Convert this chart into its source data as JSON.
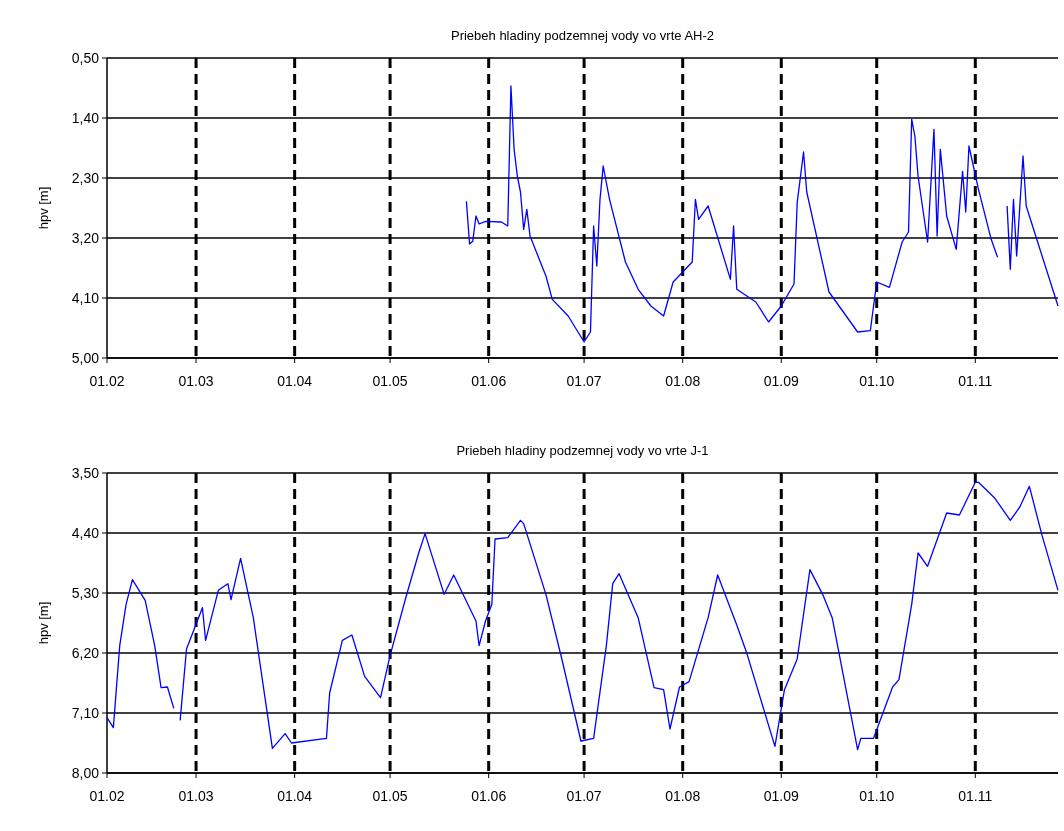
{
  "chart_data": [
    {
      "type": "line",
      "title": "Priebeh hladiny podzemnej vody vo vrte AH-2",
      "ylabel": "hpv [m]",
      "grid": true,
      "x": [
        "--05-25",
        "--05-26",
        "--05-27",
        "--05-28",
        "--05-29",
        "--05-31",
        "--06-05",
        "--06-07",
        "--06-08",
        "--06-09",
        "--06-10",
        "--06-11",
        "--06-12",
        "--06-13",
        "--06-14",
        "--06-19",
        "--06-21",
        "--06-26",
        "--07-01",
        "--07-03",
        "--07-04",
        "--07-05",
        "--07-06",
        "--07-07",
        "--07-09",
        "--07-14",
        "--07-18",
        "--07-22",
        "--07-26",
        "--07-29",
        "--08-01",
        "--08-04",
        "--08-05",
        "--08-06",
        "--08-09",
        "--08-16",
        "--08-17",
        "--08-18",
        "--08-24",
        "--08-28",
        "--09-01",
        "--09-05",
        "--09-06",
        "--09-08",
        "--09-09",
        "--09-16",
        "--09-25",
        "--09-29",
        "--10-01",
        "--10-05",
        "--10-09",
        "--10-11",
        "--10-12",
        "--10-13",
        "--10-14",
        "--10-17",
        "--10-19",
        "--10-20",
        "--10-21",
        "--10-23",
        "--10-26",
        "--10-28",
        "--10-29",
        "--10-30",
        "--11-02",
        "--11-06",
        "--11-08",
        "--11-10",
        "--11-11",
        "--11-12",
        "--11-13",
        "--11-14",
        "--11-16",
        "--11-17",
        "--11-22",
        "--11-27"
      ],
      "series": [
        {
          "color": "#0000ff",
          "values": [
            2.65,
            3.29,
            3.25,
            2.87,
            2.99,
            2.95,
            2.96,
            3.02,
            0.92,
            1.87,
            2.27,
            2.51,
            3.07,
            2.77,
            3.17,
            3.77,
            4.12,
            4.37,
            4.76,
            4.61,
            3.02,
            3.62,
            2.62,
            2.12,
            2.62,
            3.56,
            3.97,
            4.22,
            4.37,
            3.86,
            3.71,
            3.56,
            2.62,
            2.92,
            2.72,
            3.82,
            3.02,
            3.97,
            4.16,
            4.46,
            4.22,
            3.89,
            2.67,
            1.91,
            2.51,
            4.01,
            4.61,
            4.59,
            3.86,
            3.94,
            3.26,
            3.11,
            1.42,
            1.67,
            2.27,
            3.26,
            1.57,
            3.17,
            1.87,
            2.87,
            3.37,
            2.2,
            2.81,
            1.82,
            2.47,
            3.22,
            3.49,
            null,
            2.72,
            3.67,
            2.62,
            3.47,
            1.97,
            2.72,
            3.47,
            4.22
          ]
        }
      ],
      "xlim": [
        "--02-01",
        "--11-27"
      ],
      "xticks": [
        {
          "value": "--02-01",
          "label": "01.02"
        },
        {
          "value": "--03-01",
          "label": "01.03"
        },
        {
          "value": "--04-01",
          "label": "01.04"
        },
        {
          "value": "--05-01",
          "label": "01.05"
        },
        {
          "value": "--06-01",
          "label": "01.06"
        },
        {
          "value": "--07-01",
          "label": "01.07"
        },
        {
          "value": "--08-01",
          "label": "01.08"
        },
        {
          "value": "--09-01",
          "label": "01.09"
        },
        {
          "value": "--10-01",
          "label": "01.10"
        },
        {
          "value": "--11-01",
          "label": "01.11"
        }
      ],
      "ylim": [
        5.0,
        0.5
      ],
      "yticks": [
        {
          "value": 0.5,
          "label": "0,50"
        },
        {
          "value": 1.4,
          "label": "1,40"
        },
        {
          "value": 2.3,
          "label": "2,30"
        },
        {
          "value": 3.2,
          "label": "3,20"
        },
        {
          "value": 4.1,
          "label": "4,10"
        },
        {
          "value": 5.0,
          "label": "5,00"
        }
      ]
    },
    {
      "type": "line",
      "title": "Priebeh hladiny podzemnej vody vo vrte J-1",
      "ylabel": "hpv [m]",
      "grid": true,
      "x": [
        "--02-01",
        "--02-03",
        "--02-05",
        "--02-07",
        "--02-09",
        "--02-13",
        "--02-16",
        "--02-18",
        "--02-20",
        "--02-22",
        "--02-23",
        "--02-24",
        "--02-26",
        "--03-03",
        "--03-04",
        "--03-08",
        "--03-11",
        "--03-12",
        "--03-15",
        "--03-19",
        "--03-25",
        "--03-29",
        "--03-31",
        "--04-11",
        "--04-12",
        "--04-16",
        "--04-19",
        "--04-23",
        "--04-28",
        "--05-01",
        "--05-06",
        "--05-10",
        "--05-12",
        "--05-18",
        "--05-21",
        "--05-28",
        "--05-29",
        "--05-31",
        "--06-02",
        "--06-03",
        "--06-07",
        "--06-11",
        "--06-12",
        "--06-19",
        "--06-24",
        "--06-30",
        "--07-04",
        "--07-08",
        "--07-10",
        "--07-12",
        "--07-18",
        "--07-23",
        "--07-26",
        "--07-28",
        "--07-31",
        "--08-03",
        "--08-09",
        "--08-12",
        "--08-18",
        "--08-21",
        "--08-30",
        "--09-02",
        "--09-06",
        "--09-10",
        "--09-14",
        "--09-17",
        "--09-25",
        "--09-26",
        "--09-30",
        "--10-06",
        "--10-08",
        "--10-12",
        "--10-14",
        "--10-17",
        "--10-23",
        "--10-27",
        "--11-01",
        "--11-02",
        "--11-07",
        "--11-12",
        "--11-15",
        "--11-18",
        "--11-22",
        "--11-27"
      ],
      "series": [
        {
          "color": "#0000ff",
          "values": [
            7.17,
            7.32,
            6.09,
            5.47,
            5.1,
            5.41,
            6.09,
            6.72,
            6.71,
            7.03,
            null,
            7.21,
            6.14,
            5.52,
            6.01,
            5.26,
            5.16,
            5.4,
            4.78,
            5.67,
            7.63,
            7.41,
            7.55,
            7.48,
            6.8,
            6.01,
            5.93,
            6.55,
            6.87,
            6.24,
            5.36,
            4.7,
            4.41,
            5.32,
            5.03,
            5.72,
            6.09,
            5.72,
            5.47,
            4.49,
            4.47,
            4.21,
            4.26,
            5.32,
            6.29,
            7.52,
            7.48,
            6.09,
            5.16,
            5.01,
            5.67,
            6.72,
            6.75,
            7.34,
            6.71,
            6.63,
            5.67,
            5.03,
            5.78,
            6.18,
            7.6,
            6.75,
            6.29,
            4.95,
            5.32,
            5.67,
            7.65,
            7.48,
            7.48,
            6.71,
            6.6,
            5.47,
            4.7,
            4.9,
            4.1,
            4.13,
            3.64,
            3.64,
            3.87,
            4.21,
            4.01,
            3.7,
            4.44,
            5.26
          ]
        }
      ],
      "xlim": [
        "--02-01",
        "--11-27"
      ],
      "xticks": [
        {
          "value": "--02-01",
          "label": "01.02"
        },
        {
          "value": "--03-01",
          "label": "01.03"
        },
        {
          "value": "--04-01",
          "label": "01.04"
        },
        {
          "value": "--05-01",
          "label": "01.05"
        },
        {
          "value": "--06-01",
          "label": "01.06"
        },
        {
          "value": "--07-01",
          "label": "01.07"
        },
        {
          "value": "--08-01",
          "label": "01.08"
        },
        {
          "value": "--09-01",
          "label": "01.09"
        },
        {
          "value": "--10-01",
          "label": "01.10"
        },
        {
          "value": "--11-01",
          "label": "01.11"
        }
      ],
      "ylim": [
        8.0,
        3.5
      ],
      "yticks": [
        {
          "value": 3.5,
          "label": "3,50"
        },
        {
          "value": 4.4,
          "label": "4,40"
        },
        {
          "value": 5.3,
          "label": "5,30"
        },
        {
          "value": 6.2,
          "label": "6,20"
        },
        {
          "value": 7.1,
          "label": "7,10"
        },
        {
          "value": 8.0,
          "label": "8,00"
        }
      ]
    }
  ]
}
